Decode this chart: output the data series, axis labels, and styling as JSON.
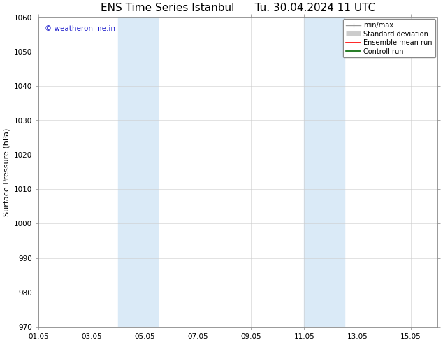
{
  "title": "ENS Time Series Istanbul      Tu. 30.04.2024 11 UTC",
  "ylabel": "Surface Pressure (hPa)",
  "ylim": [
    970,
    1060
  ],
  "yticks": [
    970,
    980,
    990,
    1000,
    1010,
    1020,
    1030,
    1040,
    1050,
    1060
  ],
  "xtick_positions": [
    1,
    3,
    5,
    7,
    9,
    11,
    13,
    15
  ],
  "xtick_labels": [
    "01.05",
    "03.05",
    "05.05",
    "07.05",
    "09.05",
    "11.05",
    "13.05",
    "15.05"
  ],
  "xlim": [
    1,
    16
  ],
  "shaded_bands": [
    {
      "x_start": 4.0,
      "x_end": 5.5
    },
    {
      "x_start": 11.0,
      "x_end": 12.5
    }
  ],
  "shade_color": "#daeaf7",
  "background_color": "#ffffff",
  "watermark_text": "© weatheronline.in",
  "watermark_color": "#2222cc",
  "legend_items": [
    {
      "label": "min/max",
      "color": "#999999",
      "lw": 1.0,
      "ls": "-",
      "type": "minmax"
    },
    {
      "label": "Standard deviation",
      "color": "#cccccc",
      "lw": 5,
      "ls": "-",
      "type": "band"
    },
    {
      "label": "Ensemble mean run",
      "color": "#ff0000",
      "lw": 1.2,
      "ls": "-",
      "type": "line"
    },
    {
      "label": "Controll run",
      "color": "#006600",
      "lw": 1.2,
      "ls": "-",
      "type": "line"
    }
  ],
  "title_fontsize": 11,
  "axis_fontsize": 8,
  "tick_fontsize": 7.5,
  "watermark_fontsize": 7.5,
  "legend_fontsize": 7,
  "grid_color": "#cccccc",
  "grid_lw": 0.4,
  "spine_color": "#888888",
  "spine_lw": 0.6
}
